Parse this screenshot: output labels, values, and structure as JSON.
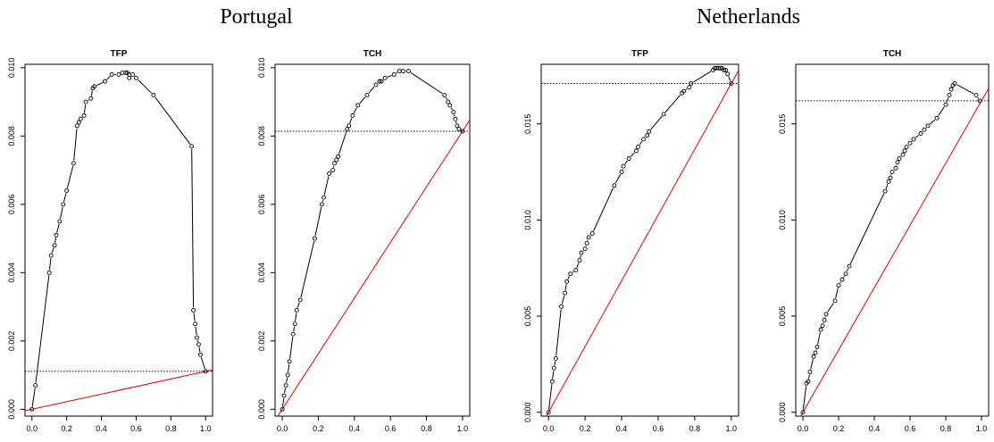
{
  "groups": [
    {
      "title": "Portugal"
    },
    {
      "title": "Netherlands"
    }
  ],
  "colors": {
    "curve": "#000000",
    "diagonal": "#e60000",
    "axis": "#000000"
  },
  "chart_data": [
    {
      "type": "line",
      "group": "Portugal",
      "title": "TFP",
      "xlim": [
        -0.04,
        1.04
      ],
      "ylim": [
        -0.0002,
        0.0101
      ],
      "xticks": [
        "0.0",
        "0.2",
        "0.4",
        "0.6",
        "0.8",
        "1.0"
      ],
      "yticks": [
        "0.000",
        "0.002",
        "0.004",
        "0.006",
        "0.008",
        "0.010"
      ],
      "hline": 0.00111,
      "diagonal": [
        [
          0,
          0
        ],
        [
          1,
          0.00111
        ]
      ],
      "x": [
        0.0,
        0.02,
        0.1,
        0.11,
        0.13,
        0.14,
        0.16,
        0.18,
        0.2,
        0.24,
        0.26,
        0.27,
        0.28,
        0.3,
        0.31,
        0.34,
        0.35,
        0.36,
        0.42,
        0.46,
        0.5,
        0.52,
        0.54,
        0.55,
        0.56,
        0.56,
        0.58,
        0.6,
        0.7,
        0.92,
        0.93,
        0.94,
        0.95,
        0.96,
        0.97,
        1.0
      ],
      "y": [
        0.0,
        0.0007,
        0.004,
        0.0045,
        0.0048,
        0.0051,
        0.0055,
        0.006,
        0.0064,
        0.0072,
        0.0083,
        0.0084,
        0.0085,
        0.0086,
        0.009,
        0.0091,
        0.0094,
        0.00945,
        0.0096,
        0.0098,
        0.0098,
        0.00985,
        0.00985,
        0.00985,
        0.0098,
        0.0097,
        0.0098,
        0.0097,
        0.0092,
        0.0077,
        0.0029,
        0.0025,
        0.0021,
        0.0019,
        0.0016,
        0.00111
      ]
    },
    {
      "type": "line",
      "group": "Portugal",
      "title": "TCH",
      "xlim": [
        -0.04,
        1.04
      ],
      "ylim": [
        -0.0002,
        0.0101
      ],
      "xticks": [
        "0.0",
        "0.2",
        "0.4",
        "0.6",
        "0.8",
        "1.0"
      ],
      "yticks": [
        "0.000",
        "0.002",
        "0.004",
        "0.006",
        "0.008",
        "0.010"
      ],
      "hline": 0.00814,
      "diagonal": [
        [
          0,
          0
        ],
        [
          1,
          0.00814
        ]
      ],
      "x": [
        0.0,
        0.01,
        0.02,
        0.03,
        0.04,
        0.06,
        0.07,
        0.08,
        0.1,
        0.18,
        0.22,
        0.23,
        0.26,
        0.28,
        0.29,
        0.3,
        0.31,
        0.36,
        0.37,
        0.39,
        0.42,
        0.47,
        0.52,
        0.54,
        0.55,
        0.57,
        0.62,
        0.65,
        0.67,
        0.7,
        0.9,
        0.92,
        0.93,
        0.95,
        0.96,
        0.97,
        0.98,
        1.0
      ],
      "y": [
        0.0,
        0.0004,
        0.0007,
        0.001,
        0.0014,
        0.0022,
        0.0025,
        0.0029,
        0.0032,
        0.005,
        0.006,
        0.0062,
        0.0069,
        0.007,
        0.0072,
        0.0073,
        0.0074,
        0.0082,
        0.0083,
        0.0086,
        0.0089,
        0.0092,
        0.0095,
        0.0096,
        0.0096,
        0.0097,
        0.0098,
        0.0099,
        0.0099,
        0.0099,
        0.0092,
        0.009,
        0.0089,
        0.0087,
        0.0085,
        0.0083,
        0.0082,
        0.00814
      ]
    },
    {
      "type": "line",
      "group": "Netherlands",
      "title": "TFP",
      "xlim": [
        -0.04,
        1.04
      ],
      "ylim": [
        -0.0002,
        0.0181
      ],
      "xticks": [
        "0.0",
        "0.2",
        "0.4",
        "0.6",
        "0.8",
        "1.0"
      ],
      "yticks": [
        "0.000",
        "0.005",
        "0.010",
        "0.015"
      ],
      "hline": 0.0171,
      "diagonal": [
        [
          0,
          0
        ],
        [
          1,
          0.0171
        ]
      ],
      "x": [
        0.0,
        0.02,
        0.03,
        0.04,
        0.07,
        0.09,
        0.1,
        0.12,
        0.15,
        0.17,
        0.18,
        0.2,
        0.21,
        0.22,
        0.24,
        0.36,
        0.4,
        0.41,
        0.44,
        0.48,
        0.49,
        0.52,
        0.54,
        0.55,
        0.63,
        0.73,
        0.74,
        0.77,
        0.78,
        0.9,
        0.91,
        0.92,
        0.93,
        0.94,
        0.95,
        0.96,
        0.97,
        0.98,
        1.0
      ],
      "y": [
        0.0,
        0.0016,
        0.0023,
        0.0028,
        0.0055,
        0.0062,
        0.0068,
        0.0072,
        0.0074,
        0.0079,
        0.0083,
        0.0085,
        0.0088,
        0.0091,
        0.0093,
        0.0118,
        0.0125,
        0.0128,
        0.0132,
        0.0136,
        0.0138,
        0.0142,
        0.0144,
        0.0146,
        0.0155,
        0.0166,
        0.0167,
        0.0169,
        0.0171,
        0.0178,
        0.0179,
        0.0179,
        0.0179,
        0.0179,
        0.0179,
        0.0178,
        0.0178,
        0.0176,
        0.0171
      ]
    },
    {
      "type": "line",
      "group": "Netherlands",
      "title": "TCH",
      "xlim": [
        -0.04,
        1.04
      ],
      "ylim": [
        -0.0002,
        0.0181
      ],
      "xticks": [
        "0.0",
        "0.2",
        "0.4",
        "0.6",
        "0.8",
        "1.0"
      ],
      "yticks": [
        "0.000",
        "0.005",
        "0.010",
        "0.015"
      ],
      "hline": 0.0162,
      "diagonal": [
        [
          0,
          0
        ],
        [
          1,
          0.0162
        ]
      ],
      "x": [
        0.0,
        0.02,
        0.03,
        0.04,
        0.06,
        0.07,
        0.08,
        0.1,
        0.11,
        0.12,
        0.13,
        0.18,
        0.2,
        0.22,
        0.24,
        0.26,
        0.46,
        0.48,
        0.49,
        0.5,
        0.52,
        0.53,
        0.54,
        0.56,
        0.57,
        0.58,
        0.6,
        0.62,
        0.66,
        0.68,
        0.7,
        0.75,
        0.8,
        0.82,
        0.83,
        0.84,
        0.85,
        0.97,
        0.99
      ],
      "y": [
        0.0,
        0.0015,
        0.0016,
        0.0021,
        0.0029,
        0.0031,
        0.0034,
        0.0043,
        0.0045,
        0.0048,
        0.0051,
        0.0058,
        0.0066,
        0.0069,
        0.0072,
        0.0076,
        0.0115,
        0.012,
        0.0122,
        0.0125,
        0.0127,
        0.013,
        0.0132,
        0.0134,
        0.0136,
        0.0138,
        0.014,
        0.0142,
        0.0145,
        0.0147,
        0.0149,
        0.0153,
        0.016,
        0.0165,
        0.0168,
        0.017,
        0.0171,
        0.0165,
        0.0162
      ]
    }
  ]
}
